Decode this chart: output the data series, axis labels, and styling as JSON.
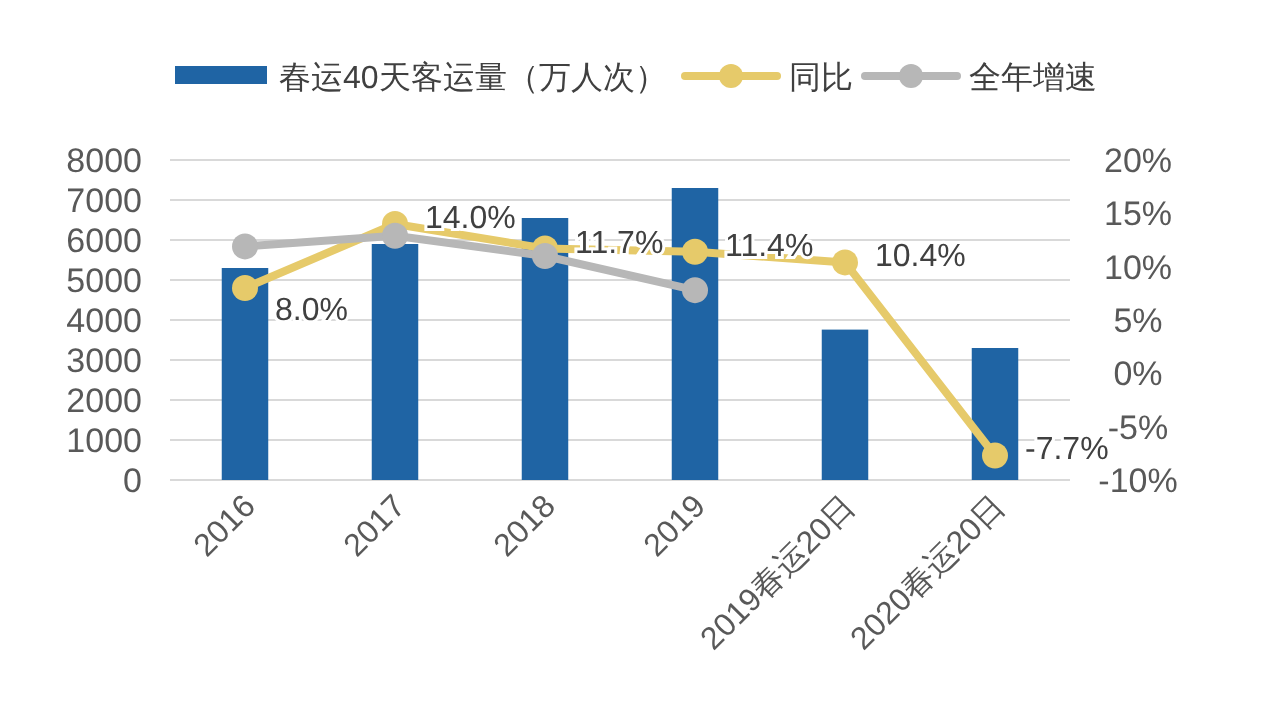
{
  "chart_data": {
    "type": "bar",
    "categories": [
      "2016",
      "2017",
      "2018",
      "2019",
      "2019春运20日",
      "2020春运20日"
    ],
    "series": [
      {
        "name": "春运40天客运量（万人次）",
        "color": "#1f64a4",
        "values": [
          5300,
          5900,
          6550,
          7300,
          3760,
          3300
        ]
      },
      {
        "name": "同比",
        "type": "line",
        "axis": "y2",
        "color": "#e6ca6a",
        "values": [
          8.0,
          14.0,
          11.7,
          11.4,
          10.4,
          -7.7
        ],
        "value_labels": [
          "8.0%",
          "14.0%",
          "11.7%",
          "11.4%",
          "10.4%",
          "-7.7%"
        ]
      },
      {
        "name": "全年增速",
        "type": "line",
        "axis": "y2",
        "color": "#b7b7b7",
        "values": [
          11.9,
          12.9,
          11.0,
          7.8,
          null,
          null
        ]
      }
    ],
    "ylim": [
      0,
      8000
    ],
    "yticks": [
      0,
      1000,
      2000,
      3000,
      4000,
      5000,
      6000,
      7000,
      8000
    ],
    "y2lim": [
      -10,
      20
    ],
    "y2ticks": [
      {
        "value": -10,
        "label": "-10%"
      },
      {
        "value": -5,
        "label": "-5%"
      },
      {
        "value": 0,
        "label": "0%"
      },
      {
        "value": 5,
        "label": "5%"
      },
      {
        "value": 10,
        "label": "10%"
      },
      {
        "value": 15,
        "label": "15%"
      },
      {
        "value": 20,
        "label": "20%"
      }
    ],
    "grid": "y",
    "legend": "top",
    "marker": "circle"
  }
}
